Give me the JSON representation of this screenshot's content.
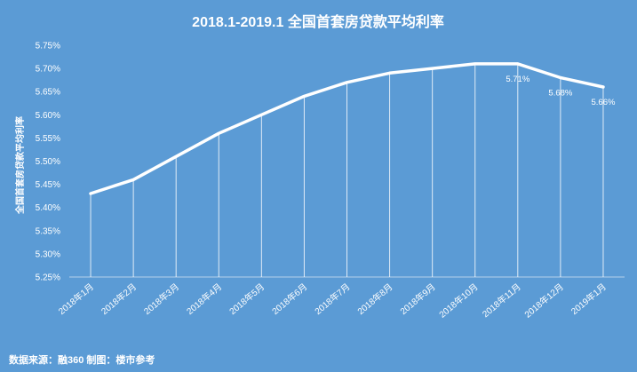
{
  "chart_data": {
    "type": "line",
    "title": "2018.1-2019.1  全国首套房贷款平均利率",
    "ylabel": "全国首套房贷款平均利率",
    "xlabel": "",
    "categories": [
      "2018年1月",
      "2018年2月",
      "2018年3月",
      "2018年4月",
      "2018年5月",
      "2018年6月",
      "2018年7月",
      "2018年8月",
      "2018年9月",
      "2018年10月",
      "2018年11月",
      "2018年12月",
      "2019年1月"
    ],
    "series": [
      {
        "values": [
          5.43,
          5.46,
          5.51,
          5.56,
          5.6,
          5.64,
          5.67,
          5.69,
          5.7,
          5.71,
          5.71,
          5.68,
          5.66
        ]
      }
    ],
    "data_labels": [
      {
        "index": 10,
        "text": "5.71%"
      },
      {
        "index": 11,
        "text": "5.68%"
      },
      {
        "index": 12,
        "text": "5.66%"
      }
    ],
    "ylim": [
      5.25,
      5.75
    ],
    "yticks": [
      "5.25%",
      "5.30%",
      "5.35%",
      "5.40%",
      "5.45%",
      "5.50%",
      "5.55%",
      "5.60%",
      "5.65%",
      "5.70%",
      "5.75%"
    ],
    "ytick_values": [
      5.25,
      5.3,
      5.35,
      5.4,
      5.45,
      5.5,
      5.55,
      5.6,
      5.65,
      5.7,
      5.75
    ],
    "grid": false,
    "drop_lines": true,
    "legend": "none",
    "source_note": "数据来源：融360  制图：楼市参考",
    "colors": {
      "background": "#5b9bd5",
      "line": "#ffffff",
      "text": "#ffffff"
    }
  }
}
